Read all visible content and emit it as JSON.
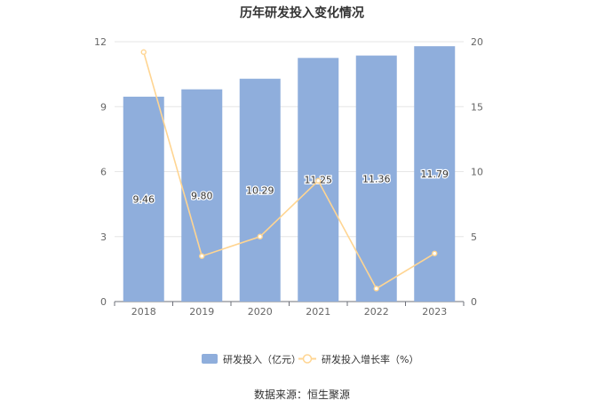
{
  "title": "历年研发投入变化情况",
  "source": "数据来源：恒生聚源",
  "chart_data": {
    "type": "bar",
    "categories": [
      "2018",
      "2019",
      "2020",
      "2021",
      "2022",
      "2023"
    ],
    "series": [
      {
        "name": "研发投入（亿元）",
        "type": "bar",
        "axis": "left",
        "values": [
          9.46,
          9.8,
          10.29,
          11.25,
          11.36,
          11.79
        ]
      },
      {
        "name": "研发投入增长率（%）",
        "type": "line",
        "axis": "right",
        "values": [
          19.2,
          3.5,
          5.0,
          9.3,
          1.0,
          3.7
        ]
      }
    ],
    "data_labels": [
      "9.46",
      "9.80",
      "10.29",
      "11.25",
      "11.36",
      "11.79"
    ],
    "ylim_left": [
      0,
      12
    ],
    "yticks_left": [
      "0",
      "3",
      "6",
      "9",
      "12"
    ],
    "ylim_right": [
      0,
      20
    ],
    "yticks_right": [
      "0",
      "5",
      "10",
      "15",
      "20"
    ],
    "grid": true,
    "legend_position": "bottom",
    "colors": {
      "bar": "#8faedc",
      "line": "#ffd592",
      "axis_text": "#666666",
      "grid": "#e6e6e6"
    }
  }
}
